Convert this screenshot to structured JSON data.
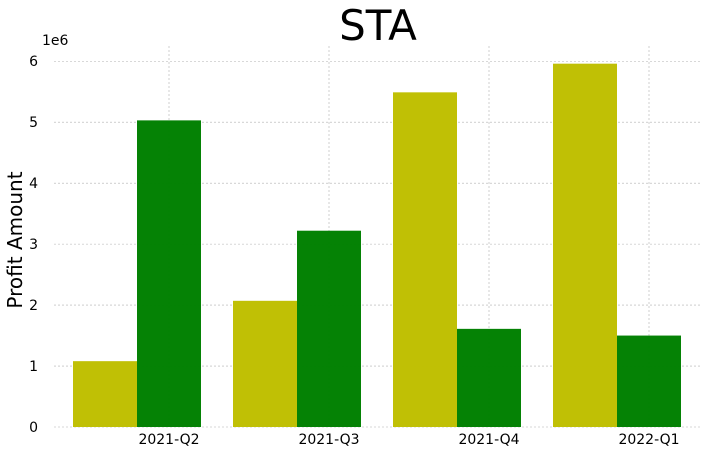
{
  "chart_data": {
    "type": "bar",
    "title": "STA",
    "xlabel": "",
    "ylabel": "Profit Amount",
    "y_offset_label": "1e6",
    "categories": [
      "2021-Q2",
      "2021-Q3",
      "2021-Q4",
      "2022-Q1"
    ],
    "series": [
      {
        "color": "#bfbf00",
        "values": [
          1.08,
          2.07,
          5.49,
          5.96
        ]
      },
      {
        "color": "#008000",
        "values": [
          5.03,
          3.22,
          1.61,
          1.5
        ]
      }
    ],
    "ylim": [
      0,
      6.25
    ],
    "yticks": [
      "0",
      "1",
      "2",
      "3",
      "4",
      "5",
      "6"
    ],
    "grid": true,
    "legend": "none"
  }
}
